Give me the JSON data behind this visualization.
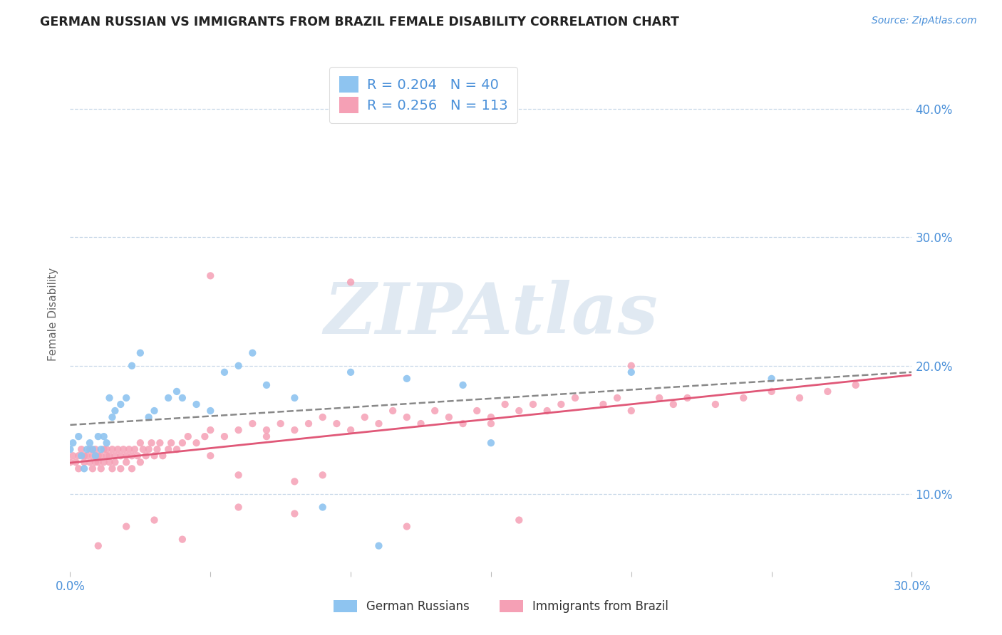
{
  "title": "GERMAN RUSSIAN VS IMMIGRANTS FROM BRAZIL FEMALE DISABILITY CORRELATION CHART",
  "source": "Source: ZipAtlas.com",
  "ylabel": "Female Disability",
  "xlim": [
    0.0,
    0.3
  ],
  "ylim": [
    0.04,
    0.44
  ],
  "yticks": [
    0.1,
    0.2,
    0.3,
    0.4
  ],
  "xticks": [
    0.0,
    0.05,
    0.1,
    0.15,
    0.2,
    0.25,
    0.3
  ],
  "xtick_labels": [
    "0.0%",
    "",
    "",
    "",
    "",
    "",
    "30.0%"
  ],
  "series1": {
    "name": "German Russians",
    "R": 0.204,
    "N": 40,
    "marker_color": "#8ec4f0",
    "trend_color": "#888888",
    "trend_style": "--",
    "x": [
      0.0,
      0.001,
      0.003,
      0.004,
      0.005,
      0.006,
      0.007,
      0.008,
      0.009,
      0.01,
      0.011,
      0.012,
      0.013,
      0.014,
      0.015,
      0.016,
      0.018,
      0.02,
      0.022,
      0.025,
      0.028,
      0.03,
      0.035,
      0.038,
      0.04,
      0.045,
      0.05,
      0.055,
      0.06,
      0.065,
      0.07,
      0.08,
      0.09,
      0.1,
      0.11,
      0.12,
      0.14,
      0.15,
      0.2,
      0.25
    ],
    "y": [
      0.135,
      0.14,
      0.145,
      0.13,
      0.12,
      0.135,
      0.14,
      0.135,
      0.13,
      0.145,
      0.135,
      0.145,
      0.14,
      0.175,
      0.16,
      0.165,
      0.17,
      0.175,
      0.2,
      0.21,
      0.16,
      0.165,
      0.175,
      0.18,
      0.175,
      0.17,
      0.165,
      0.195,
      0.2,
      0.21,
      0.185,
      0.175,
      0.09,
      0.195,
      0.06,
      0.19,
      0.185,
      0.14,
      0.195,
      0.19
    ]
  },
  "series2": {
    "name": "Immigrants from Brazil",
    "R": 0.256,
    "N": 113,
    "marker_color": "#f5a0b5",
    "trend_color": "#e05878",
    "trend_style": "-",
    "x": [
      0.0,
      0.001,
      0.002,
      0.003,
      0.003,
      0.004,
      0.005,
      0.005,
      0.006,
      0.007,
      0.007,
      0.008,
      0.008,
      0.009,
      0.009,
      0.01,
      0.01,
      0.011,
      0.011,
      0.012,
      0.012,
      0.013,
      0.013,
      0.014,
      0.014,
      0.015,
      0.015,
      0.016,
      0.016,
      0.017,
      0.018,
      0.018,
      0.019,
      0.02,
      0.02,
      0.021,
      0.022,
      0.022,
      0.023,
      0.024,
      0.025,
      0.025,
      0.026,
      0.027,
      0.028,
      0.029,
      0.03,
      0.031,
      0.032,
      0.033,
      0.035,
      0.036,
      0.038,
      0.04,
      0.042,
      0.045,
      0.048,
      0.05,
      0.055,
      0.06,
      0.065,
      0.07,
      0.075,
      0.08,
      0.085,
      0.09,
      0.095,
      0.1,
      0.105,
      0.11,
      0.115,
      0.12,
      0.125,
      0.13,
      0.135,
      0.14,
      0.145,
      0.15,
      0.155,
      0.16,
      0.165,
      0.17,
      0.175,
      0.18,
      0.19,
      0.195,
      0.2,
      0.21,
      0.215,
      0.22,
      0.23,
      0.24,
      0.25,
      0.26,
      0.27,
      0.28,
      0.05,
      0.1,
      0.15,
      0.2,
      0.01,
      0.02,
      0.03,
      0.04,
      0.06,
      0.08,
      0.12,
      0.16,
      0.06,
      0.08,
      0.05,
      0.07,
      0.09
    ],
    "y": [
      0.125,
      0.13,
      0.125,
      0.13,
      0.12,
      0.135,
      0.13,
      0.125,
      0.13,
      0.125,
      0.135,
      0.13,
      0.12,
      0.125,
      0.135,
      0.13,
      0.125,
      0.13,
      0.12,
      0.135,
      0.125,
      0.13,
      0.135,
      0.125,
      0.13,
      0.135,
      0.12,
      0.13,
      0.125,
      0.135,
      0.13,
      0.12,
      0.135,
      0.13,
      0.125,
      0.135,
      0.13,
      0.12,
      0.135,
      0.13,
      0.125,
      0.14,
      0.135,
      0.13,
      0.135,
      0.14,
      0.13,
      0.135,
      0.14,
      0.13,
      0.135,
      0.14,
      0.135,
      0.14,
      0.145,
      0.14,
      0.145,
      0.15,
      0.145,
      0.15,
      0.155,
      0.15,
      0.155,
      0.15,
      0.155,
      0.16,
      0.155,
      0.15,
      0.16,
      0.155,
      0.165,
      0.16,
      0.155,
      0.165,
      0.16,
      0.155,
      0.165,
      0.16,
      0.17,
      0.165,
      0.17,
      0.165,
      0.17,
      0.175,
      0.17,
      0.175,
      0.165,
      0.175,
      0.17,
      0.175,
      0.17,
      0.175,
      0.18,
      0.175,
      0.18,
      0.185,
      0.27,
      0.265,
      0.155,
      0.2,
      0.06,
      0.075,
      0.08,
      0.065,
      0.09,
      0.085,
      0.075,
      0.08,
      0.115,
      0.11,
      0.13,
      0.145,
      0.115
    ]
  },
  "legend_R1": "0.204",
  "legend_N1": "40",
  "legend_R2": "0.256",
  "legend_N2": "113",
  "watermark": "ZIPAtlas",
  "background_color": "#ffffff",
  "grid_color": "#c8d8e8",
  "title_color": "#222222",
  "axis_label_color": "#666666",
  "tick_color": "#4a90d9",
  "source_color": "#4a90d9"
}
